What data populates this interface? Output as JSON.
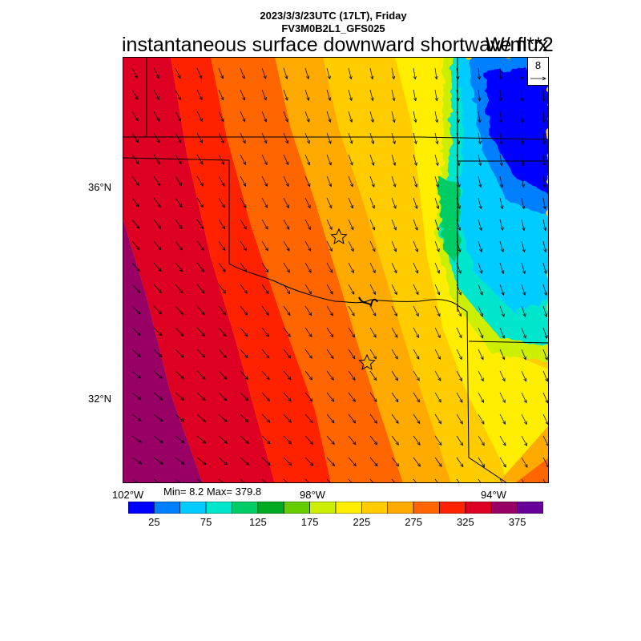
{
  "header": {
    "line1": "2023/3/3/23UTC (17LT), Friday",
    "line2": "FV3M0B2L1_GFS025",
    "title": "instantaneous surface downward shortwave flux",
    "units": "W/m**2"
  },
  "map": {
    "lat_labels": [
      "36°N",
      "32°N"
    ],
    "lon_labels": [
      "102°W",
      "98°W",
      "94°W"
    ],
    "min_max": "Min= 8.2 Max= 379.8",
    "ref_vector": "8",
    "markers": [
      "star",
      "star"
    ]
  },
  "colorbar": {
    "colors": [
      "#0000ff",
      "#0080ff",
      "#00ccff",
      "#00e6cc",
      "#00cc66",
      "#00aa22",
      "#66cc00",
      "#ccee00",
      "#ffee00",
      "#ffcc00",
      "#ffaa00",
      "#ff6600",
      "#ff2200",
      "#dd0022",
      "#990066",
      "#660099"
    ],
    "labels": [
      "25",
      "75",
      "125",
      "175",
      "225",
      "275",
      "325",
      "375"
    ]
  }
}
